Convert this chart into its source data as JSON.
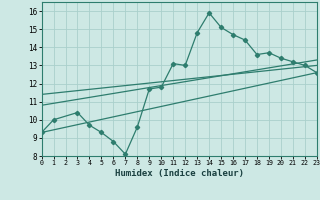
{
  "title": "",
  "xlabel": "Humidex (Indice chaleur)",
  "xlim": [
    0,
    23
  ],
  "ylim": [
    8,
    16.5
  ],
  "xticks": [
    0,
    1,
    2,
    3,
    4,
    5,
    6,
    7,
    8,
    9,
    10,
    11,
    12,
    13,
    14,
    15,
    16,
    17,
    18,
    19,
    20,
    21,
    22,
    23
  ],
  "yticks": [
    8,
    9,
    10,
    11,
    12,
    13,
    14,
    15,
    16
  ],
  "bg_color": "#cde8e4",
  "grid_color": "#aad0cc",
  "line_color": "#2e7d6e",
  "line1_x": [
    0,
    1,
    3,
    4,
    5,
    6,
    7,
    8,
    9,
    10,
    11,
    12,
    13,
    14,
    15,
    16,
    17,
    18,
    19,
    20,
    21,
    22,
    23
  ],
  "line1_y": [
    9.3,
    10.0,
    10.4,
    9.7,
    9.3,
    8.8,
    8.1,
    9.6,
    11.7,
    11.8,
    13.1,
    13.0,
    14.8,
    15.9,
    15.1,
    14.7,
    14.4,
    13.6,
    13.7,
    13.4,
    13.2,
    13.0,
    12.6
  ],
  "line2_x": [
    0,
    23
  ],
  "line2_y": [
    9.3,
    12.6
  ],
  "line3_x": [
    0,
    23
  ],
  "line3_y": [
    10.8,
    13.3
  ],
  "line4_x": [
    0,
    23
  ],
  "line4_y": [
    11.4,
    13.0
  ]
}
